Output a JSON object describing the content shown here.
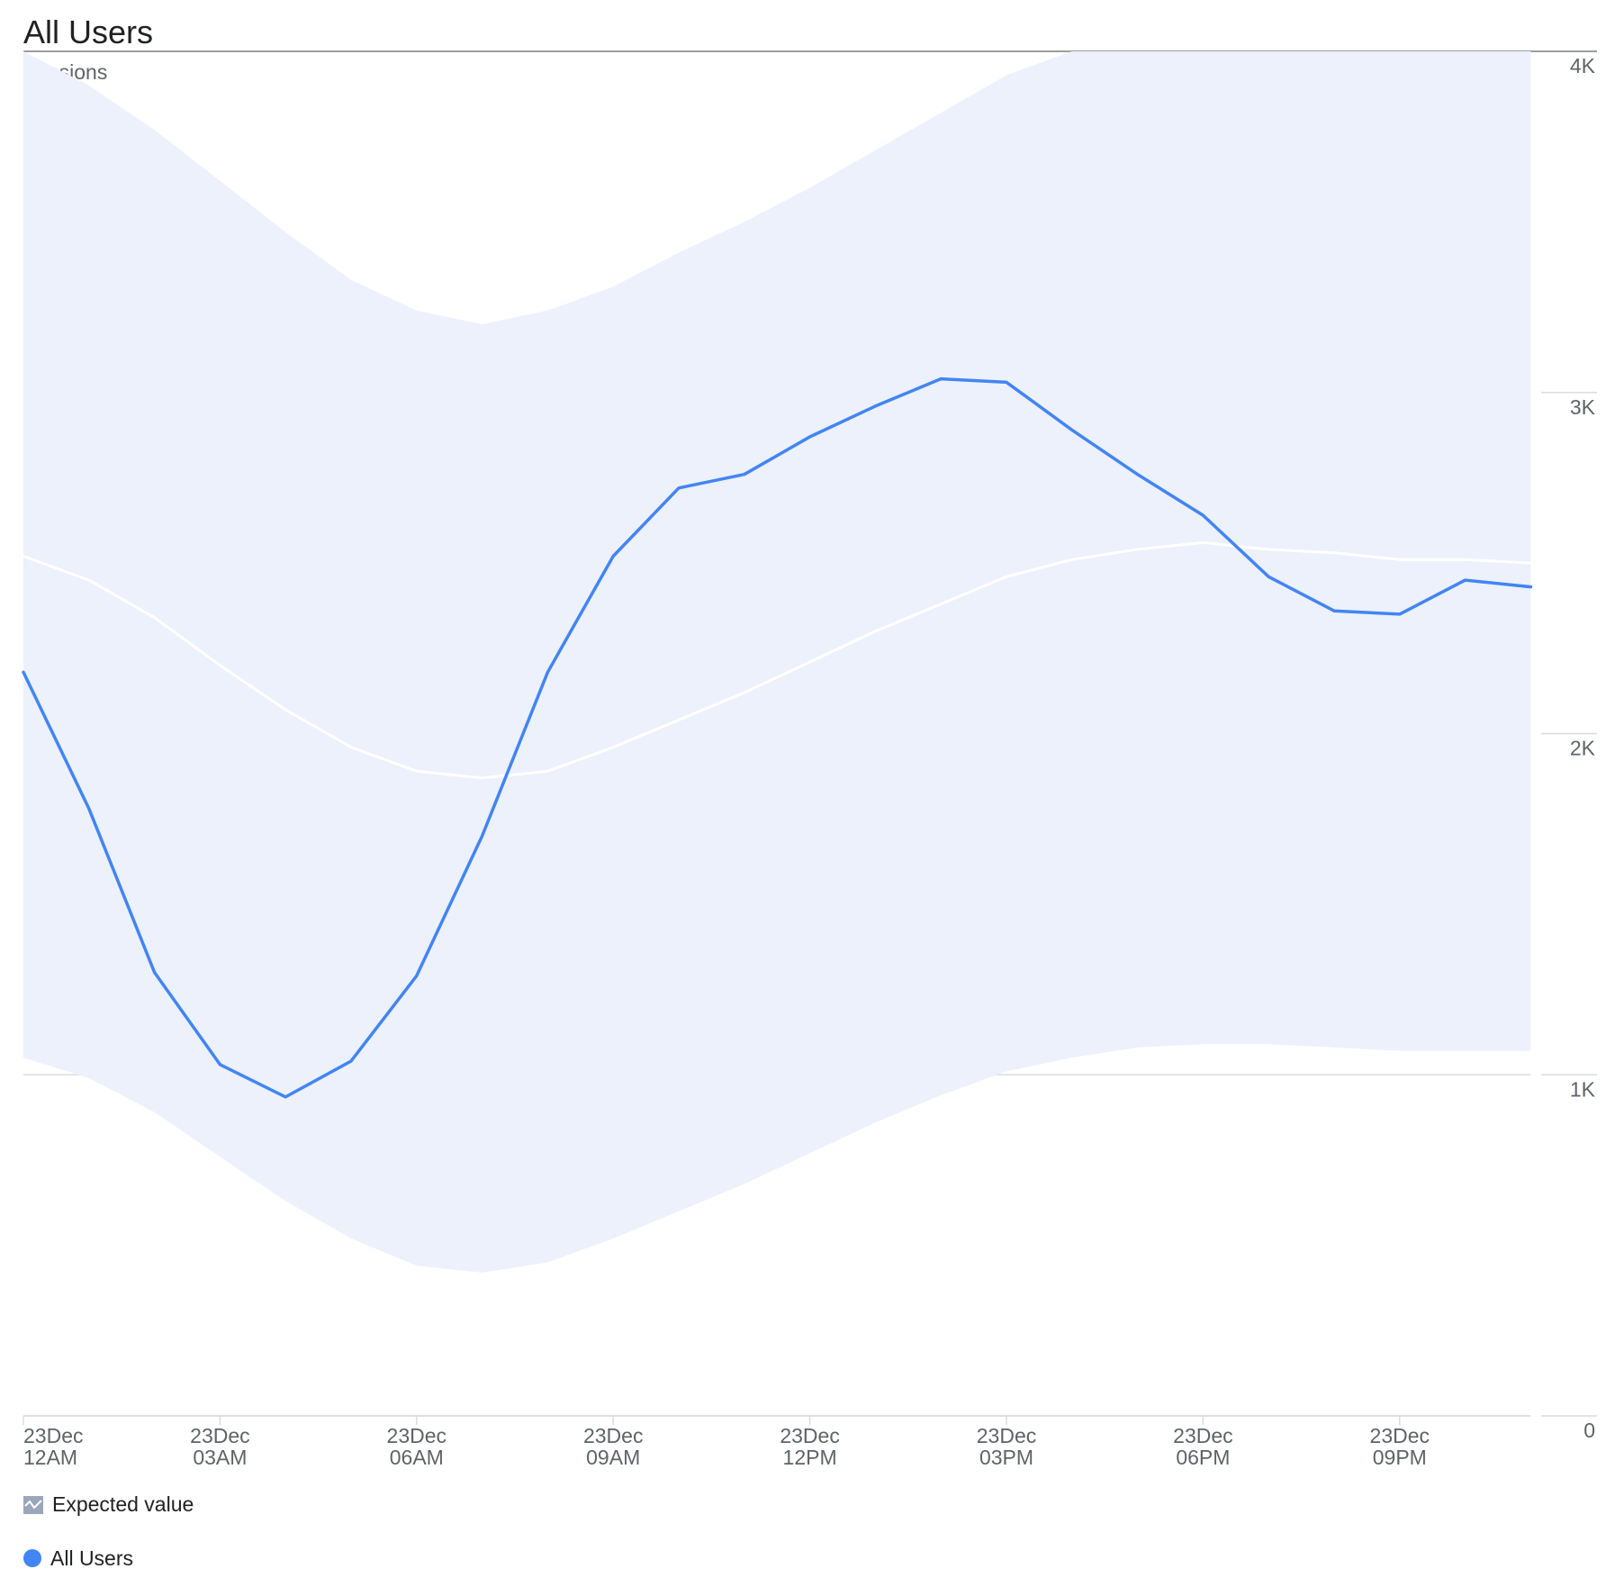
{
  "chart": {
    "title": "All Users",
    "subtitle": "Sessions"
  },
  "legend": {
    "expected_label": "Expected value",
    "actual_label": "All Users"
  },
  "colors": {
    "actual_line": "#4285f4",
    "band_fill": "#edf1fc",
    "expected_line": "#ffffff",
    "gridline": "#dadce0",
    "axis_text": "#5f6368",
    "legend_expected_icon": "#9aa6b9"
  },
  "chart_data": {
    "type": "line",
    "title": "All Users",
    "subtitle": "Sessions",
    "x_labels": [
      [
        "23Dec",
        "12AM"
      ],
      [
        "23Dec",
        "03AM"
      ],
      [
        "23Dec",
        "06AM"
      ],
      [
        "23Dec",
        "09AM"
      ],
      [
        "23Dec",
        "12PM"
      ],
      [
        "23Dec",
        "03PM"
      ],
      [
        "23Dec",
        "06PM"
      ],
      [
        "23Dec",
        "09PM"
      ]
    ],
    "x_hours": [
      0,
      1,
      2,
      3,
      4,
      5,
      6,
      7,
      8,
      9,
      10,
      11,
      12,
      13,
      14,
      15,
      16,
      17,
      18,
      19,
      20,
      21,
      22,
      23
    ],
    "ylim": [
      0,
      4000
    ],
    "y_ticks": [
      {
        "value": 0,
        "label": "0"
      },
      {
        "value": 1000,
        "label": "1K"
      },
      {
        "value": 2000,
        "label": "2K"
      },
      {
        "value": 3000,
        "label": "3K"
      },
      {
        "value": 4000,
        "label": "4K"
      }
    ],
    "y_axis_side": "right",
    "grid": true,
    "legend_position": "bottom-left",
    "series": [
      {
        "name": "All Users",
        "values": [
          2180,
          1780,
          1300,
          1030,
          935,
          1040,
          1290,
          1700,
          2180,
          2520,
          2720,
          2760,
          2870,
          2960,
          3040,
          3030,
          2890,
          2760,
          2640,
          2460,
          2360,
          2350,
          2450,
          2430
        ]
      },
      {
        "name": "Expected value",
        "values": [
          2520,
          2450,
          2340,
          2200,
          2070,
          1960,
          1890,
          1870,
          1890,
          1960,
          2040,
          2120,
          2210,
          2300,
          2380,
          2460,
          2510,
          2540,
          2560,
          2540,
          2530,
          2510,
          2510,
          2500
        ],
        "upper": [
          4000,
          3900,
          3770,
          3620,
          3470,
          3330,
          3240,
          3200,
          3240,
          3310,
          3410,
          3500,
          3600,
          3710,
          3820,
          3930,
          4000,
          4000,
          4000,
          4000,
          4000,
          4000,
          4000,
          4000
        ],
        "lower": [
          1050,
          990,
          890,
          760,
          630,
          520,
          440,
          420,
          450,
          520,
          600,
          680,
          770,
          860,
          940,
          1010,
          1050,
          1080,
          1090,
          1090,
          1080,
          1070,
          1070,
          1070
        ]
      }
    ]
  }
}
